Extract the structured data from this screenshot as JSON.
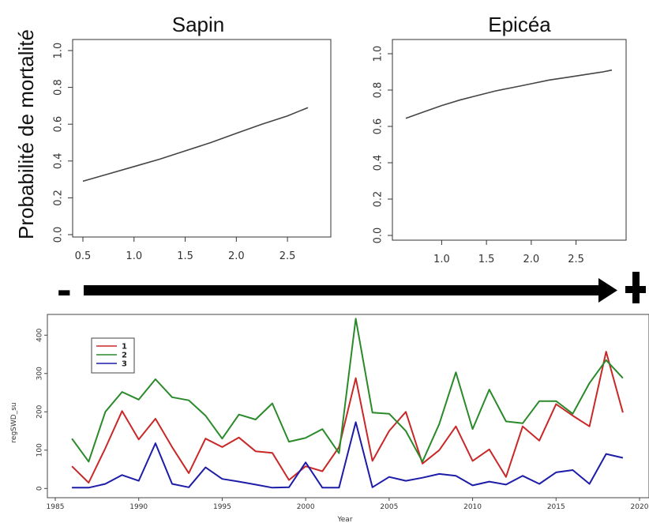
{
  "ylabel_shared": "Probabilité de mortalité",
  "arrow": {
    "minus_symbol": "-",
    "plus_symbol": "+"
  },
  "chart_data": [
    {
      "type": "line",
      "title": "Sapin",
      "xlabel": "",
      "ylabel": "",
      "xlim": [
        0.5,
        2.7
      ],
      "ylim": [
        0.0,
        1.0
      ],
      "xticks": [
        "0.5",
        "1.0",
        "1.5",
        "2.0",
        "2.5"
      ],
      "yticks": [
        "0.0",
        "0.2",
        "0.4",
        "0.6",
        "0.8",
        "1.0"
      ],
      "series": [
        {
          "x": [
            0.5,
            0.75,
            1.0,
            1.25,
            1.5,
            1.75,
            2.0,
            2.25,
            2.5,
            2.7
          ],
          "values": [
            0.29,
            0.33,
            0.37,
            0.41,
            0.455,
            0.5,
            0.55,
            0.6,
            0.645,
            0.69
          ]
        }
      ]
    },
    {
      "type": "line",
      "title": "Epicéa",
      "xlabel": "",
      "ylabel": "",
      "xlim": [
        0.6,
        2.9
      ],
      "ylim": [
        0.0,
        1.0
      ],
      "xticks": [
        "1.0",
        "1.5",
        "2.0",
        "2.5"
      ],
      "yticks": [
        "0.0",
        "0.2",
        "0.4",
        "0.6",
        "0.8",
        "1.0"
      ],
      "series": [
        {
          "x": [
            0.6,
            0.8,
            1.0,
            1.2,
            1.4,
            1.6,
            1.8,
            2.0,
            2.2,
            2.4,
            2.6,
            2.8,
            2.9
          ],
          "values": [
            0.645,
            0.68,
            0.715,
            0.745,
            0.77,
            0.795,
            0.815,
            0.835,
            0.855,
            0.87,
            0.885,
            0.9,
            0.91
          ]
        }
      ]
    },
    {
      "type": "line",
      "title": "",
      "xlabel": "Year",
      "ylabel": "regSWD_su",
      "xlim": [
        1985,
        2020
      ],
      "ylim": [
        -20,
        450
      ],
      "xticks": [
        "1985",
        "1990",
        "1995",
        "2000",
        "2005",
        "2010",
        "2015",
        "2020"
      ],
      "yticks": [
        "0",
        "100",
        "200",
        "300",
        "400"
      ],
      "x": [
        1986,
        1987,
        1988,
        1989,
        1990,
        1991,
        1992,
        1993,
        1994,
        1995,
        1996,
        1997,
        1998,
        1999,
        2000,
        2001,
        2002,
        2003,
        2004,
        2005,
        2006,
        2007,
        2008,
        2009,
        2010,
        2011,
        2012,
        2013,
        2014,
        2015,
        2016,
        2017,
        2018,
        2019
      ],
      "series": [
        {
          "name": "1",
          "color": "#c82828",
          "values": [
            58,
            15,
            105,
            202,
            128,
            182,
            108,
            40,
            130,
            108,
            133,
            97,
            93,
            22,
            58,
            45,
            108,
            288,
            72,
            150,
            200,
            65,
            100,
            162,
            72,
            102,
            30,
            162,
            125,
            220,
            190,
            162,
            357,
            198
          ]
        },
        {
          "name": "2",
          "color": "#2a8a2a",
          "values": [
            130,
            70,
            200,
            252,
            232,
            285,
            238,
            230,
            190,
            130,
            193,
            180,
            222,
            122,
            132,
            155,
            92,
            443,
            198,
            195,
            150,
            70,
            168,
            303,
            155,
            258,
            175,
            170,
            228,
            228,
            195,
            275,
            335,
            288
          ]
        },
        {
          "name": "3",
          "color": "#1c1ca8",
          "values": [
            2,
            2,
            12,
            35,
            20,
            118,
            12,
            3,
            55,
            25,
            18,
            10,
            2,
            3,
            68,
            2,
            2,
            173,
            3,
            30,
            20,
            28,
            38,
            33,
            8,
            18,
            10,
            33,
            12,
            42,
            48,
            12,
            90,
            80
          ]
        }
      ],
      "legend_position": "top-left"
    }
  ]
}
